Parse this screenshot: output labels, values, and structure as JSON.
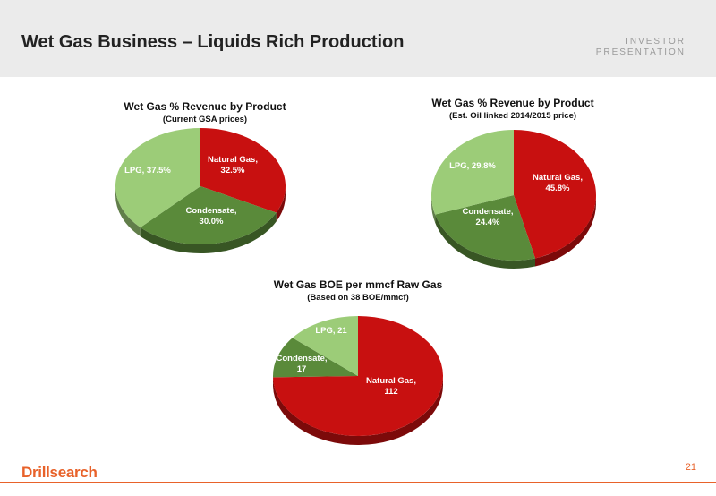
{
  "header": {
    "title": "Wet Gas Business – Liquids Rich Production",
    "tag_line1": "INVESTOR",
    "tag_line2": "PRESENTATION"
  },
  "footer": {
    "logo": "Drillsearch",
    "page": "21"
  },
  "colors": {
    "natural_gas": "#c81010",
    "condensate": "#5a8a3a",
    "lpg": "#9ccc78",
    "accent": "#e8622a"
  },
  "chart_data": [
    {
      "type": "pie",
      "title": "Wet Gas % Revenue by Product",
      "subtitle": "(Current GSA prices)",
      "slices": [
        {
          "label_line1": "Natural Gas,",
          "label_line2": "32.5%",
          "value": 32.5
        },
        {
          "label_line1": "Condensate,",
          "label_line2": "30.0%",
          "value": 30.0
        },
        {
          "label_line1": "LPG, 37.5%",
          "label_line2": "",
          "value": 37.5
        }
      ]
    },
    {
      "type": "pie",
      "title": "Wet Gas % Revenue by Product",
      "subtitle": "(Est. Oil linked 2014/2015  price)",
      "slices": [
        {
          "label_line1": "Natural Gas,",
          "label_line2": "45.8%",
          "value": 45.8
        },
        {
          "label_line1": "Condensate,",
          "label_line2": "24.4%",
          "value": 24.4
        },
        {
          "label_line1": "LPG, 29.8%",
          "label_line2": "",
          "value": 29.8
        }
      ]
    },
    {
      "type": "pie",
      "title": "Wet Gas BOE per mmcf Raw Gas",
      "subtitle": "(Based on 38 BOE/mmcf)",
      "slices": [
        {
          "label_line1": "Natural Gas,",
          "label_line2": "112",
          "value": 112
        },
        {
          "label_line1": "Condensate,",
          "label_line2": "17",
          "value": 17
        },
        {
          "label_line1": "LPG,  21",
          "label_line2": "",
          "value": 21
        }
      ]
    }
  ]
}
